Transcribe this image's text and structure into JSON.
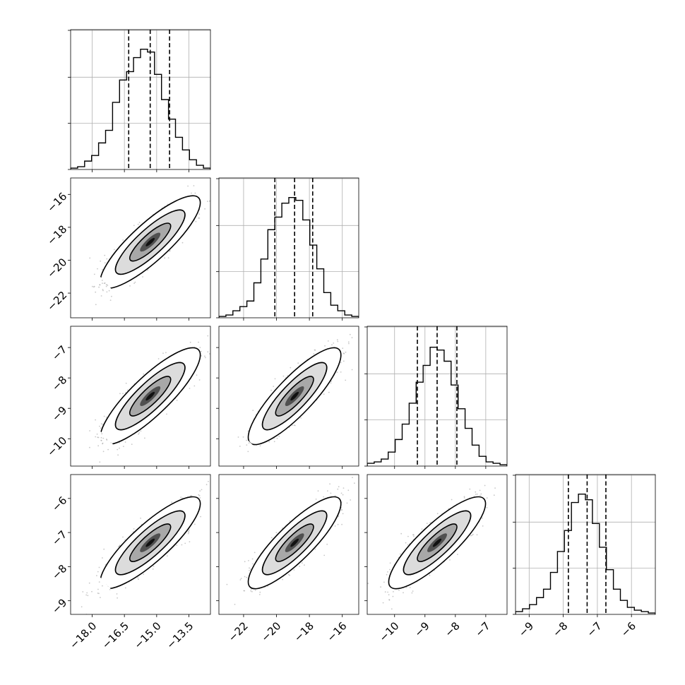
{
  "chart_data": {
    "type": "corner",
    "parameters": [
      {
        "mean": -15.3,
        "sd": 0.95,
        "q": [
          -16.3,
          -15.3,
          -14.4
        ],
        "lim": [
          -19.0,
          -12.5
        ],
        "ticks": [
          -18.0,
          -16.5,
          -15.0,
          -13.5
        ],
        "tick_labels": [
          "−18.0",
          "−16.5",
          "−15.0",
          "−13.5"
        ]
      },
      {
        "mean": -18.9,
        "sd": 1.15,
        "q": [
          -20.1,
          -18.9,
          -17.8
        ],
        "lim": [
          -23.5,
          -15.0
        ],
        "ticks": [
          -22,
          -20,
          -18,
          -16
        ],
        "tick_labels": [
          "−22",
          "−20",
          "−18",
          "−16"
        ]
      },
      {
        "mean": -8.6,
        "sd": 0.65,
        "q": [
          -9.25,
          -8.6,
          -7.95
        ],
        "lim": [
          -10.9,
          -6.3
        ],
        "ticks": [
          -10,
          -9,
          -8,
          -7
        ],
        "tick_labels": [
          "−10",
          "−9",
          "−8",
          "−7"
        ]
      },
      {
        "mean": -7.3,
        "sd": 0.55,
        "q": [
          -7.85,
          -7.3,
          -6.75
        ],
        "lim": [
          -9.4,
          -5.3
        ],
        "ticks": [
          -9,
          -8,
          -7,
          -6
        ],
        "tick_labels": [
          "−9",
          "−8",
          "−7",
          "−6"
        ]
      }
    ],
    "correlation": 0.85,
    "histograms": [
      [
        0.01,
        0.02,
        0.06,
        0.1,
        0.19,
        0.28,
        0.48,
        0.64,
        0.7,
        0.8,
        0.86,
        0.84,
        0.68,
        0.5,
        0.36,
        0.23,
        0.14,
        0.07,
        0.03,
        0.01
      ],
      [
        0.01,
        0.02,
        0.05,
        0.08,
        0.12,
        0.25,
        0.42,
        0.63,
        0.72,
        0.82,
        0.86,
        0.84,
        0.7,
        0.52,
        0.35,
        0.18,
        0.09,
        0.05,
        0.02,
        0.01
      ],
      [
        0.02,
        0.03,
        0.05,
        0.1,
        0.19,
        0.3,
        0.45,
        0.6,
        0.72,
        0.85,
        0.83,
        0.75,
        0.58,
        0.41,
        0.27,
        0.15,
        0.07,
        0.03,
        0.02,
        0.01
      ],
      [
        0.02,
        0.04,
        0.07,
        0.12,
        0.18,
        0.3,
        0.45,
        0.6,
        0.8,
        0.86,
        0.82,
        0.65,
        0.48,
        0.32,
        0.18,
        0.1,
        0.05,
        0.03,
        0.02,
        0.01
      ]
    ],
    "grid": true
  }
}
